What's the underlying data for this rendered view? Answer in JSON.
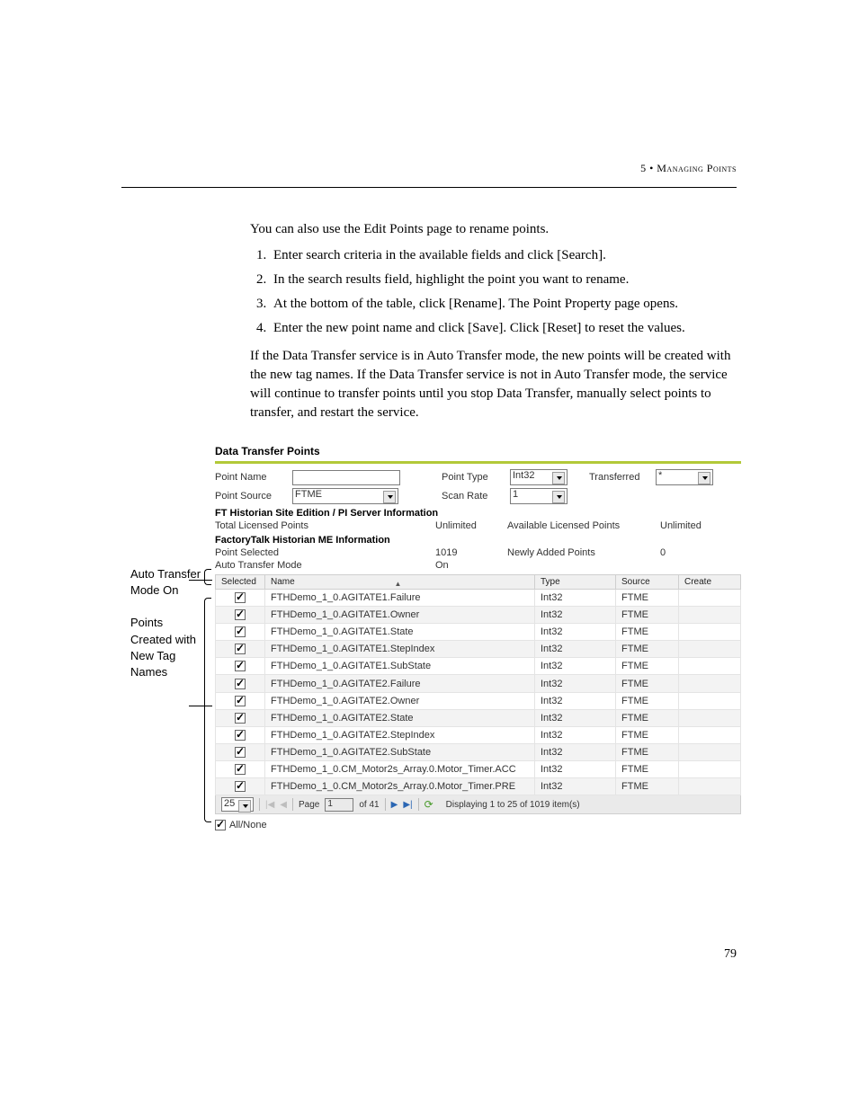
{
  "header": {
    "chapter_ref": "5 • ",
    "chapter_title": "Managing Points"
  },
  "prose": {
    "intro": "You can also use the Edit Points page to rename points.",
    "steps": [
      "Enter search criteria in the available fields and click [Search].",
      "In the search results field, highlight the point you want to rename.",
      "At the bottom of the table, click [Rename]. The Point Property page opens.",
      "Enter the new point name and click [Save]. Click [Reset] to reset the values."
    ],
    "post": "If the Data Transfer service is in Auto Transfer mode, the new points will be created with the new tag names. If the Data Transfer service is not in Auto Transfer mode, the service will continue to transfer points until you stop Data Transfer, manually select points to transfer, and restart the service."
  },
  "callouts": {
    "c1": "Auto Transfer Mode On",
    "c2": "Points Created with New Tag Names"
  },
  "panel": {
    "title": "Data Transfer Points",
    "filters": {
      "point_name_label": "Point Name",
      "point_name_value": "",
      "point_source_label": "Point Source",
      "point_source_value": "FTME",
      "point_type_label": "Point Type",
      "point_type_value": "Int32",
      "scan_rate_label": "Scan Rate",
      "scan_rate_value": "1",
      "transferred_label": "Transferred",
      "transferred_value": "*"
    },
    "section1_label": "FT Historian Site Edition / PI Server Information",
    "section1": {
      "total_licensed_label": "Total Licensed Points",
      "total_licensed_value": "Unlimited",
      "avail_licensed_label": "Available Licensed Points",
      "avail_licensed_value": "Unlimited"
    },
    "section2_label": "FactoryTalk Historian ME Information",
    "section2": {
      "point_selected_label": "Point Selected",
      "point_selected_value": "1019",
      "newly_added_label": "Newly Added Points",
      "newly_added_value": "0",
      "auto_transfer_label": "Auto Transfer Mode",
      "auto_transfer_value": "On"
    },
    "columns": {
      "selected": "Selected",
      "name": "Name",
      "type": "Type",
      "source": "Source",
      "create": "Create"
    },
    "rows": [
      {
        "sel": true,
        "name": "FTHDemo_1_0.AGITATE1.Failure",
        "type": "Int32",
        "source": "FTME"
      },
      {
        "sel": true,
        "name": "FTHDemo_1_0.AGITATE1.Owner",
        "type": "Int32",
        "source": "FTME"
      },
      {
        "sel": true,
        "name": "FTHDemo_1_0.AGITATE1.State",
        "type": "Int32",
        "source": "FTME"
      },
      {
        "sel": true,
        "name": "FTHDemo_1_0.AGITATE1.StepIndex",
        "type": "Int32",
        "source": "FTME"
      },
      {
        "sel": true,
        "name": "FTHDemo_1_0.AGITATE1.SubState",
        "type": "Int32",
        "source": "FTME"
      },
      {
        "sel": true,
        "name": "FTHDemo_1_0.AGITATE2.Failure",
        "type": "Int32",
        "source": "FTME"
      },
      {
        "sel": true,
        "name": "FTHDemo_1_0.AGITATE2.Owner",
        "type": "Int32",
        "source": "FTME"
      },
      {
        "sel": true,
        "name": "FTHDemo_1_0.AGITATE2.State",
        "type": "Int32",
        "source": "FTME"
      },
      {
        "sel": true,
        "name": "FTHDemo_1_0.AGITATE2.StepIndex",
        "type": "Int32",
        "source": "FTME"
      },
      {
        "sel": true,
        "name": "FTHDemo_1_0.AGITATE2.SubState",
        "type": "Int32",
        "source": "FTME"
      },
      {
        "sel": true,
        "name": "FTHDemo_1_0.CM_Motor2s_Array.0.Motor_Timer.ACC",
        "type": "Int32",
        "source": "FTME"
      },
      {
        "sel": true,
        "name": "FTHDemo_1_0.CM_Motor2s_Array.0.Motor_Timer.PRE",
        "type": "Int32",
        "source": "FTME"
      }
    ],
    "pager": {
      "page_size": "25",
      "page_label": "Page",
      "page_value": "1",
      "of_label": "of 41",
      "status": "Displaying 1 to 25 of 1019 item(s)"
    },
    "allnone_label": "All/None"
  },
  "page_number": "79",
  "colors": {
    "accent_green": "#b2c938",
    "row_alt": "#f3f3f3",
    "grid_border": "#cfcfcf",
    "nav_blue": "#2a66b3"
  }
}
